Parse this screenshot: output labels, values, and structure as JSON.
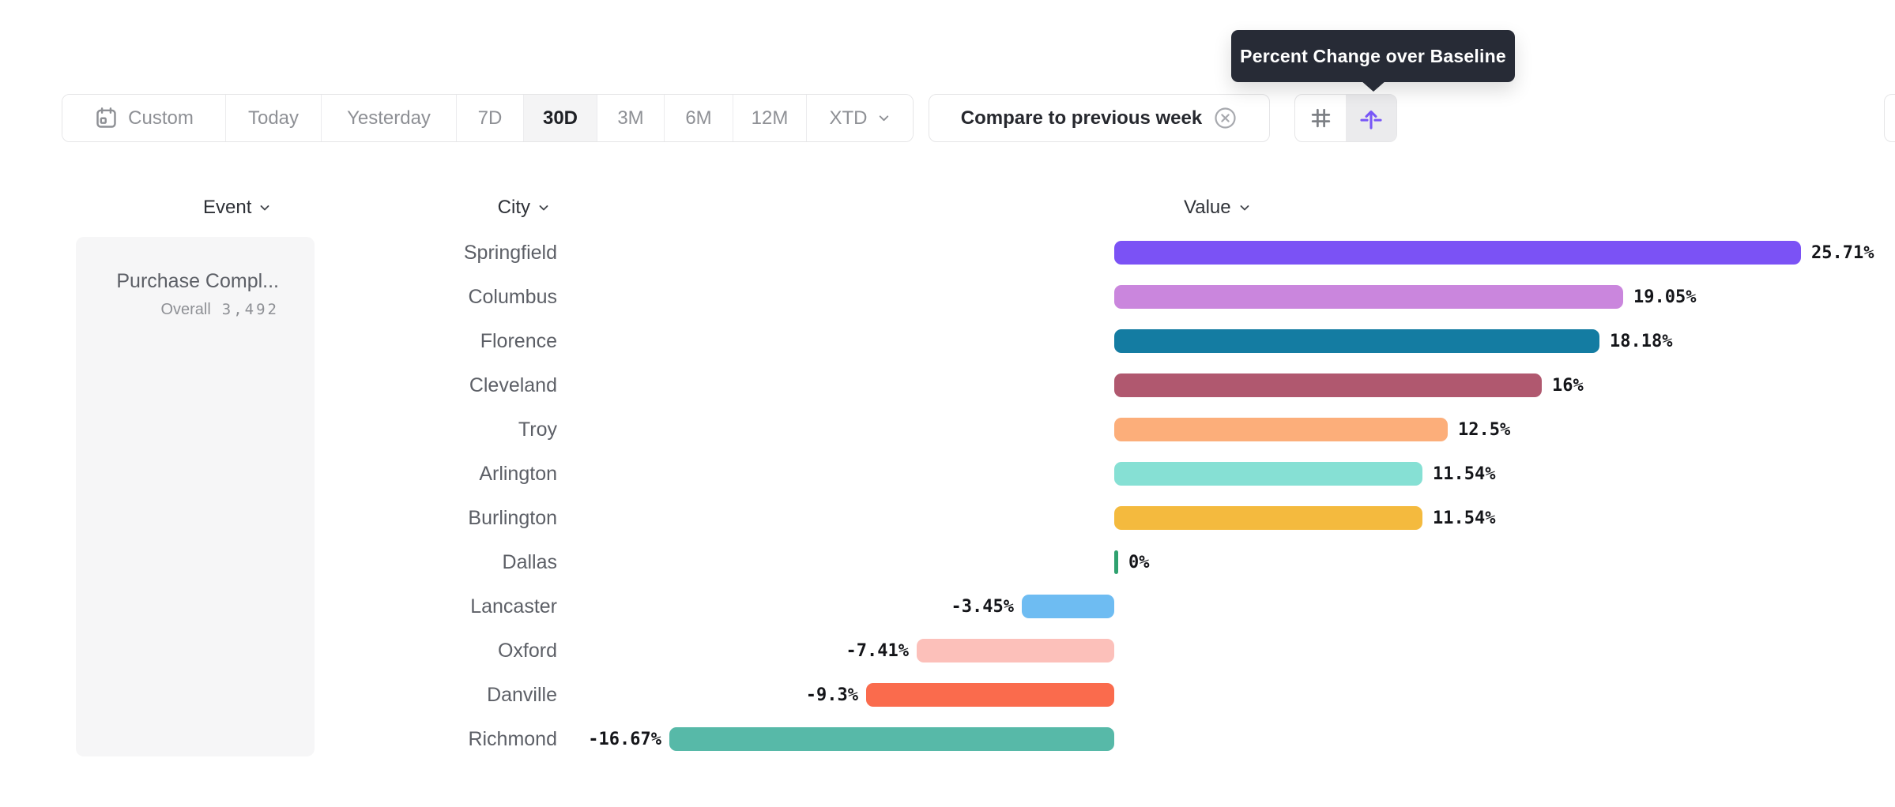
{
  "tooltip": {
    "text": "Percent Change over Baseline"
  },
  "toolbar": {
    "ranges": [
      {
        "label": "Custom"
      },
      {
        "label": "Today"
      },
      {
        "label": "Yesterday"
      },
      {
        "label": "7D"
      },
      {
        "label": "30D",
        "selected": true
      },
      {
        "label": "3M"
      },
      {
        "label": "6M"
      },
      {
        "label": "12M"
      },
      {
        "label": "XTD"
      }
    ],
    "selected_range": "30D",
    "compare_chip": {
      "label": "Compare to previous week"
    }
  },
  "columns": {
    "event": "Event",
    "city": "City",
    "value": "Value"
  },
  "event_card": {
    "title": "Purchase Compl...",
    "overall_label": "Overall",
    "overall_value": "3,492"
  },
  "chart_data": {
    "type": "bar",
    "orientation": "horizontal",
    "title": "Percent Change over Baseline",
    "unit": "%",
    "categories": [
      "Springfield",
      "Columbus",
      "Florence",
      "Cleveland",
      "Troy",
      "Arlington",
      "Burlington",
      "Dallas",
      "Lancaster",
      "Oxford",
      "Danville",
      "Richmond"
    ],
    "values": [
      25.71,
      19.05,
      18.18,
      16,
      12.5,
      11.54,
      11.54,
      0,
      -3.45,
      -7.41,
      -9.3,
      -16.67
    ],
    "labels": [
      "25.71%",
      "19.05%",
      "18.18%",
      "16%",
      "12.5%",
      "11.54%",
      "11.54%",
      "0%",
      "-3.45%",
      "-7.41%",
      "-9.3%",
      "-16.67%"
    ],
    "colors": [
      "#7B52F5",
      "#CA86DD",
      "#147CA2",
      "#B0586F",
      "#FCAE7A",
      "#86E0D4",
      "#F4BA3E",
      "#2FA16F",
      "#6EBCF2",
      "#FCC0BA",
      "#FA6B4D",
      "#57B9A8"
    ],
    "accent_color": "#7856F7",
    "xlim": [
      -20,
      29
    ]
  }
}
